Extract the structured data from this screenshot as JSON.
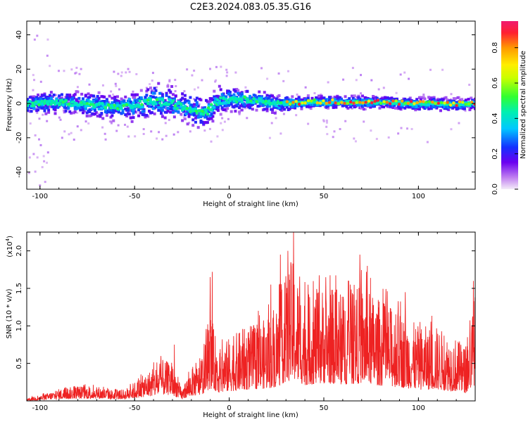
{
  "title": "C2E3.2024.083.05.35.G16",
  "colors": {
    "snr_line": "#ee2222",
    "axis": "#000000"
  },
  "chart_data": [
    {
      "type": "heatmap",
      "name": "spectrogram",
      "xlabel": "Height of straight line (km)",
      "ylabel": "Frequency (Hz)",
      "xlim": [
        -107,
        130
      ],
      "ylim": [
        -50,
        48
      ],
      "xticks": [
        -100,
        -50,
        0,
        50,
        100
      ],
      "xtick_labels": [
        "-100",
        "-50",
        "0",
        "50",
        "100"
      ],
      "yticks": [
        -40,
        -20,
        0,
        20,
        40
      ],
      "ytick_labels": [
        "-40",
        "-20",
        "0",
        "20",
        "40"
      ],
      "colorbar": {
        "label": "Normalized spectral amplitude",
        "range": [
          0,
          0.95
        ],
        "ticks": [
          0.0,
          0.2,
          0.4,
          0.6,
          0.8
        ],
        "tick_labels": [
          "0.0",
          "0.2",
          "0.4",
          "0.6",
          "0.8"
        ]
      },
      "ridge_center_hz": [
        [
          -107,
          0
        ],
        [
          -90,
          1
        ],
        [
          -75,
          0
        ],
        [
          -60,
          -2
        ],
        [
          -50,
          -1
        ],
        [
          -40,
          2
        ],
        [
          -30,
          0
        ],
        [
          -20,
          -3
        ],
        [
          -12,
          -4
        ],
        [
          -5,
          2
        ],
        [
          5,
          3
        ],
        [
          15,
          2
        ],
        [
          25,
          0
        ],
        [
          40,
          1
        ],
        [
          60,
          1
        ],
        [
          80,
          1
        ],
        [
          100,
          0
        ],
        [
          130,
          0
        ]
      ],
      "ridge_halfwidth_hz": [
        [
          -107,
          6
        ],
        [
          -60,
          8
        ],
        [
          -40,
          11
        ],
        [
          -12,
          10
        ],
        [
          10,
          7
        ],
        [
          40,
          4
        ],
        [
          130,
          4
        ]
      ]
    },
    {
      "type": "line",
      "name": "snr",
      "xlabel": "Height of straight line (km)",
      "ylabel": "SNR (10 * v/v)",
      "scale_label": "(x10",
      "scale_exponent": "4",
      "scale_close": ")",
      "xlim": [
        -107,
        130
      ],
      "ylim": [
        0,
        2.25
      ],
      "xticks": [
        -100,
        -50,
        0,
        50,
        100
      ],
      "xtick_labels": [
        "-100",
        "-50",
        "0",
        "50",
        "100"
      ],
      "yticks": [
        0.5,
        1.0,
        1.5,
        2.0
      ],
      "ytick_labels": [
        "0.5",
        "1.0",
        "1.5",
        "2.0"
      ],
      "envelope": [
        [
          -107,
          0.04
        ],
        [
          -100,
          0.07
        ],
        [
          -90,
          0.16
        ],
        [
          -80,
          0.2
        ],
        [
          -70,
          0.2
        ],
        [
          -60,
          0.14
        ],
        [
          -55,
          0.16
        ],
        [
          -45,
          0.35
        ],
        [
          -35,
          0.55
        ],
        [
          -30,
          0.5
        ],
        [
          -25,
          0.15
        ],
        [
          -20,
          0.45
        ],
        [
          -15,
          0.5
        ],
        [
          -10,
          1.1
        ],
        [
          -5,
          0.7
        ],
        [
          0,
          0.85
        ],
        [
          10,
          1.0
        ],
        [
          20,
          1.1
        ],
        [
          25,
          1.25
        ],
        [
          30,
          1.7
        ],
        [
          33,
          1.9
        ],
        [
          40,
          1.4
        ],
        [
          50,
          1.55
        ],
        [
          60,
          1.45
        ],
        [
          70,
          1.55
        ],
        [
          80,
          1.35
        ],
        [
          90,
          1.2
        ],
        [
          100,
          1.0
        ],
        [
          110,
          1.0
        ],
        [
          115,
          0.9
        ],
        [
          120,
          0.85
        ],
        [
          125,
          0.7
        ],
        [
          130,
          1.45
        ]
      ],
      "peaks": [
        [
          -29,
          0.75
        ],
        [
          -10,
          1.65
        ],
        [
          -9,
          1.72
        ],
        [
          22,
          1.55
        ],
        [
          27,
          1.95
        ],
        [
          31,
          2.0
        ],
        [
          34,
          2.25
        ],
        [
          64,
          1.55
        ],
        [
          69,
          1.95
        ],
        [
          73,
          1.8
        ],
        [
          93,
          1.45
        ],
        [
          129,
          1.6
        ]
      ]
    }
  ]
}
